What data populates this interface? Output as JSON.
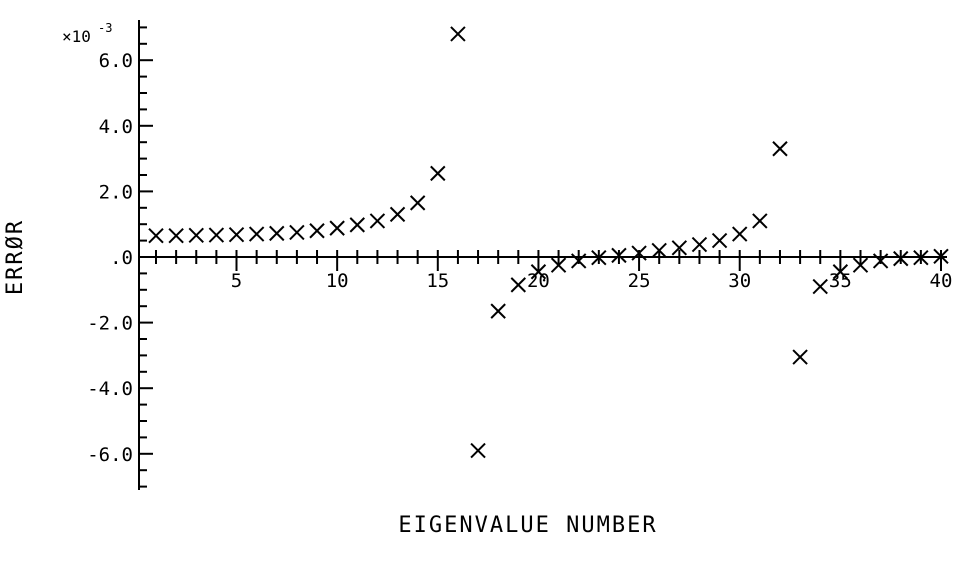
{
  "chart_data": {
    "type": "scatter",
    "marker": "x",
    "color": "#000000",
    "title": "",
    "xlabel": "EIGENVALUE NUMBER",
    "ylabel": "ERRØR",
    "y_scale_label": {
      "base": "×10",
      "exponent": "-3"
    },
    "xlim": [
      1,
      40
    ],
    "ylim": [
      -7.0,
      7.0
    ],
    "x_tick_labels": [
      "5",
      "10",
      "15",
      "20",
      "25",
      "30",
      "35",
      "40"
    ],
    "y_tick_labels": [
      "6.0",
      "4.0",
      "2.0",
      ".0",
      "-2.0",
      "-4.0",
      "-6.0"
    ],
    "grid": false,
    "series": [
      {
        "x": [
          1,
          2,
          3,
          4,
          5,
          6,
          7,
          8,
          9,
          10,
          11,
          12,
          13,
          14,
          15,
          16,
          17,
          18,
          19,
          20,
          21,
          22,
          23,
          24,
          25,
          26,
          27,
          28,
          29,
          30,
          31,
          32,
          33,
          34,
          35,
          36,
          37,
          38,
          39,
          40
        ],
        "y": [
          0.65,
          0.65,
          0.66,
          0.67,
          0.68,
          0.7,
          0.72,
          0.75,
          0.8,
          0.88,
          0.98,
          1.1,
          1.3,
          1.65,
          2.55,
          6.8,
          -5.9,
          -1.65,
          -0.85,
          -0.45,
          -0.25,
          -0.12,
          -0.02,
          0.05,
          0.12,
          0.2,
          0.28,
          0.38,
          0.5,
          0.7,
          1.1,
          3.3,
          -3.05,
          -0.9,
          -0.45,
          -0.25,
          -0.12,
          -0.05,
          -0.02,
          0.02
        ]
      }
    ]
  }
}
